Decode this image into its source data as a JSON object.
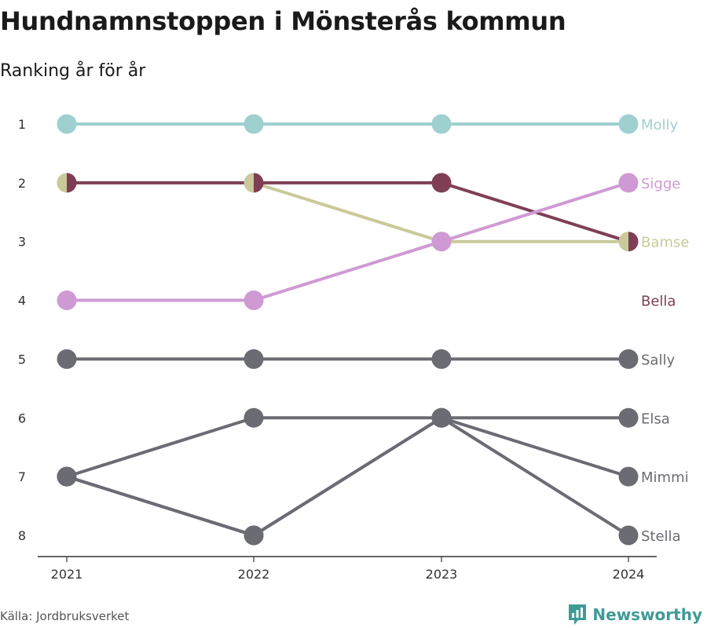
{
  "title": "Hundnamnstoppen i Mönsterås kommun",
  "subtitle": "Ranking år för år",
  "source": "Källa: Jordbruksverket",
  "brand": {
    "name": "Newsworthy",
    "icon": "bar-chart-logo-icon",
    "color": "#3f9a96"
  },
  "chart_data": {
    "type": "line",
    "xlabel": "",
    "ylabel": "",
    "x": [
      "2021",
      "2022",
      "2023",
      "2024"
    ],
    "ylim": [
      1,
      8
    ],
    "y_reversed": true,
    "y_ticks": [
      "1",
      "2",
      "3",
      "4",
      "5",
      "6",
      "7",
      "8"
    ],
    "grid": false,
    "series": [
      {
        "name": "Molly",
        "values": [
          1,
          1,
          1,
          1
        ],
        "color": "#9fd0d0"
      },
      {
        "name": "Sigge",
        "values": [
          4,
          4,
          3,
          2
        ],
        "color": "#cf9ad4"
      },
      {
        "name": "Bamse",
        "values": [
          2,
          2,
          3,
          3
        ],
        "color": "#c9c99a"
      },
      {
        "name": "Bella",
        "values": [
          2,
          2,
          2,
          3
        ],
        "color": "#7e3f55"
      },
      {
        "name": "Sally",
        "values": [
          5,
          5,
          5,
          5
        ],
        "color": "#6b6b73"
      },
      {
        "name": "Elsa",
        "values": [
          7,
          6,
          6,
          6
        ],
        "color": "#6b6b73"
      },
      {
        "name": "Mimmi",
        "values": [
          7,
          8,
          6,
          7
        ],
        "color": "#6b6b73"
      },
      {
        "name": "Stella",
        "values": [
          7,
          8,
          6,
          8
        ],
        "color": "#6b6b73"
      }
    ]
  }
}
